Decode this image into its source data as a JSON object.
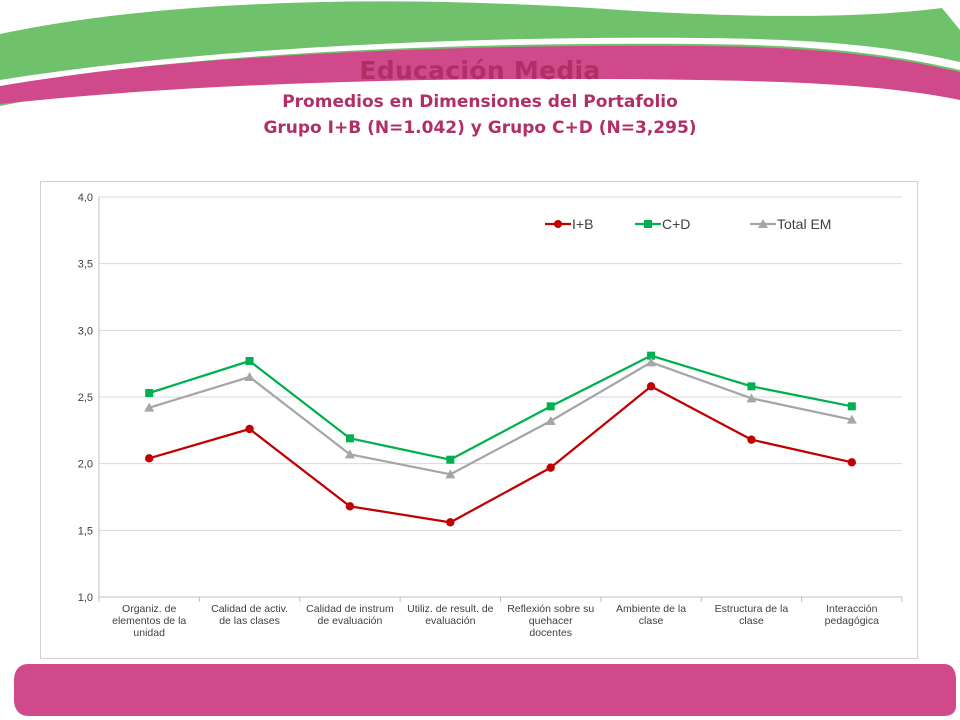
{
  "slide": {
    "title": "Educación Media",
    "subtitle_line1": "Promedios en Dimensiones del Portafolio",
    "subtitle_line2": "Grupo I+B (N=1.042) y Grupo C+D (N=3,295)"
  },
  "colors": {
    "title": "#b12f67",
    "green_band": "#6fc26b",
    "pink_band": "#d0498a",
    "I+B": "#c00000",
    "C+D": "#00b050",
    "Total EM": "#a6a6a6"
  },
  "chart_data": {
    "type": "line",
    "title": "",
    "xlabel": "",
    "ylabel": "",
    "ylim": [
      1.0,
      4.0
    ],
    "y_ticks": [
      "1,0",
      "1,5",
      "2,0",
      "2,5",
      "3,0",
      "3,5",
      "4,0"
    ],
    "grid": "horizontal",
    "legend_position": "top-right",
    "categories": [
      [
        "Organiz. de",
        "elementos de la",
        "unidad"
      ],
      [
        "Calidad de activ.",
        "de las clases"
      ],
      [
        "Calidad de instrum",
        "de evaluación"
      ],
      [
        "Utiliz. de result. de",
        "evaluación"
      ],
      [
        "Reflexión sobre su",
        "quehacer",
        "docentes"
      ],
      [
        "Ambiente de la",
        "clase"
      ],
      [
        "Estructura de la",
        "clase"
      ],
      [
        "Interacción",
        "pedagógica"
      ]
    ],
    "series": [
      {
        "name": "I+B",
        "marker": "circle",
        "values": [
          2.04,
          2.26,
          1.68,
          1.56,
          1.97,
          2.58,
          2.18,
          2.01
        ]
      },
      {
        "name": "C+D",
        "marker": "square",
        "values": [
          2.53,
          2.77,
          2.19,
          2.03,
          2.43,
          2.81,
          2.58,
          2.43
        ]
      },
      {
        "name": "Total EM",
        "marker": "triangle",
        "values": [
          2.42,
          2.65,
          2.07,
          1.92,
          2.32,
          2.76,
          2.49,
          2.33
        ]
      }
    ]
  }
}
